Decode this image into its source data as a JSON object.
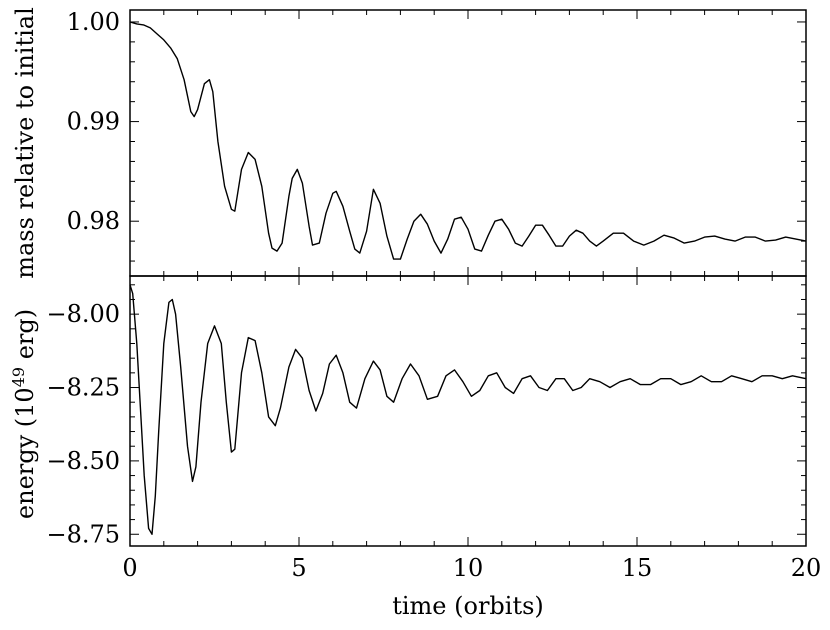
{
  "chart_data": [
    {
      "type": "line",
      "panel": "top",
      "xlabel": "",
      "ylabel": "mass relative to initial",
      "xlim": [
        0,
        20
      ],
      "ylim": [
        0.9745,
        1.0012
      ],
      "yticks": [
        0.98,
        0.99,
        1.0
      ],
      "ytick_labels": [
        "0.98",
        "0.99",
        "1.00"
      ],
      "grid": false,
      "series": [
        {
          "x": [
            0.0,
            0.2,
            0.4,
            0.6,
            0.8,
            1.0,
            1.2,
            1.4,
            1.6,
            1.8,
            1.9,
            2.0,
            2.2,
            2.35,
            2.45,
            2.6,
            2.8,
            3.0,
            3.1,
            3.3,
            3.5,
            3.7,
            3.9,
            4.1,
            4.2,
            4.35,
            4.5,
            4.7,
            4.8,
            4.95,
            5.1,
            5.3,
            5.4,
            5.6,
            5.8,
            6.0,
            6.1,
            6.3,
            6.5,
            6.65,
            6.8,
            7.0,
            7.2,
            7.4,
            7.6,
            7.8,
            8.0,
            8.2,
            8.4,
            8.6,
            8.8,
            9.0,
            9.2,
            9.4,
            9.6,
            9.8,
            10.0,
            10.2,
            10.4,
            10.6,
            10.8,
            11.0,
            11.2,
            11.4,
            11.6,
            11.8,
            12.0,
            12.2,
            12.4,
            12.6,
            12.8,
            13.0,
            13.2,
            13.4,
            13.6,
            13.8,
            14.0,
            14.3,
            14.6,
            14.9,
            15.2,
            15.5,
            15.8,
            16.1,
            16.4,
            16.7,
            17.0,
            17.3,
            17.6,
            17.9,
            18.2,
            18.5,
            18.8,
            19.1,
            19.4,
            19.7,
            20.0
          ],
          "values": [
            1.0,
            0.9998,
            0.9997,
            0.9994,
            0.9988,
            0.9982,
            0.9974,
            0.9963,
            0.9942,
            0.991,
            0.9905,
            0.9912,
            0.9938,
            0.9942,
            0.993,
            0.988,
            0.9835,
            0.9812,
            0.981,
            0.9852,
            0.9869,
            0.9862,
            0.9835,
            0.9788,
            0.9773,
            0.977,
            0.9778,
            0.9825,
            0.9843,
            0.9852,
            0.9838,
            0.9795,
            0.9776,
            0.9778,
            0.9808,
            0.9828,
            0.983,
            0.9815,
            0.979,
            0.9772,
            0.9768,
            0.979,
            0.9832,
            0.9818,
            0.9785,
            0.9762,
            0.9762,
            0.9782,
            0.98,
            0.9807,
            0.9797,
            0.978,
            0.9768,
            0.9782,
            0.9802,
            0.9804,
            0.9792,
            0.9772,
            0.977,
            0.9786,
            0.98,
            0.9802,
            0.9792,
            0.9778,
            0.9775,
            0.9785,
            0.9796,
            0.9796,
            0.9786,
            0.9775,
            0.9775,
            0.9785,
            0.9791,
            0.9788,
            0.978,
            0.9775,
            0.978,
            0.9788,
            0.9788,
            0.978,
            0.9776,
            0.978,
            0.9786,
            0.9783,
            0.9778,
            0.978,
            0.9784,
            0.9785,
            0.9782,
            0.978,
            0.9784,
            0.9784,
            0.978,
            0.9781,
            0.9784,
            0.9782,
            0.978
          ]
        }
      ]
    },
    {
      "type": "line",
      "panel": "bottom",
      "xlabel": "time (orbits)",
      "ylabel_main": "energy (10",
      "ylabel_exp": "49",
      "ylabel_unit": " erg)",
      "xlim": [
        0,
        20
      ],
      "ylim": [
        -8.79,
        -7.87
      ],
      "xticks": [
        0,
        5,
        10,
        15,
        20
      ],
      "xtick_labels": [
        "0",
        "5",
        "10",
        "15",
        "20"
      ],
      "yticks": [
        -8.75,
        -8.5,
        -8.25,
        -8.0
      ],
      "ytick_labels": [
        "−8.75",
        "−8.50",
        "−8.25",
        "−8.00"
      ],
      "grid": false,
      "series": [
        {
          "x": [
            0.0,
            0.08,
            0.2,
            0.3,
            0.42,
            0.55,
            0.65,
            0.75,
            0.85,
            1.0,
            1.15,
            1.25,
            1.35,
            1.5,
            1.7,
            1.85,
            1.95,
            2.1,
            2.3,
            2.5,
            2.7,
            2.85,
            3.0,
            3.1,
            3.3,
            3.5,
            3.7,
            3.9,
            4.1,
            4.3,
            4.45,
            4.7,
            4.9,
            5.1,
            5.3,
            5.5,
            5.7,
            5.9,
            6.1,
            6.3,
            6.5,
            6.7,
            6.95,
            7.2,
            7.4,
            7.6,
            7.8,
            8.05,
            8.3,
            8.55,
            8.8,
            9.1,
            9.35,
            9.6,
            9.85,
            10.1,
            10.35,
            10.6,
            10.85,
            11.1,
            11.35,
            11.6,
            11.85,
            12.1,
            12.35,
            12.6,
            12.85,
            13.1,
            13.35,
            13.6,
            13.9,
            14.2,
            14.5,
            14.8,
            15.1,
            15.4,
            15.7,
            16.0,
            16.3,
            16.6,
            16.9,
            17.2,
            17.5,
            17.8,
            18.1,
            18.4,
            18.7,
            19.0,
            19.3,
            19.6,
            20.0
          ],
          "values": [
            -7.9,
            -7.93,
            -8.1,
            -8.3,
            -8.55,
            -8.73,
            -8.75,
            -8.62,
            -8.4,
            -8.1,
            -7.96,
            -7.95,
            -8.0,
            -8.18,
            -8.45,
            -8.57,
            -8.52,
            -8.3,
            -8.1,
            -8.04,
            -8.1,
            -8.3,
            -8.47,
            -8.46,
            -8.2,
            -8.08,
            -8.09,
            -8.2,
            -8.35,
            -8.38,
            -8.32,
            -8.18,
            -8.12,
            -8.15,
            -8.26,
            -8.33,
            -8.27,
            -8.17,
            -8.14,
            -8.2,
            -8.3,
            -8.32,
            -8.22,
            -8.16,
            -8.19,
            -8.28,
            -8.3,
            -8.22,
            -8.17,
            -8.21,
            -8.29,
            -8.28,
            -8.21,
            -8.19,
            -8.23,
            -8.28,
            -8.26,
            -8.21,
            -8.2,
            -8.25,
            -8.27,
            -8.22,
            -8.21,
            -8.25,
            -8.26,
            -8.22,
            -8.22,
            -8.26,
            -8.25,
            -8.22,
            -8.23,
            -8.25,
            -8.23,
            -8.22,
            -8.24,
            -8.24,
            -8.22,
            -8.22,
            -8.24,
            -8.23,
            -8.21,
            -8.23,
            -8.23,
            -8.21,
            -8.22,
            -8.23,
            -8.21,
            -8.21,
            -8.22,
            -8.21,
            -8.22
          ]
        }
      ]
    }
  ]
}
